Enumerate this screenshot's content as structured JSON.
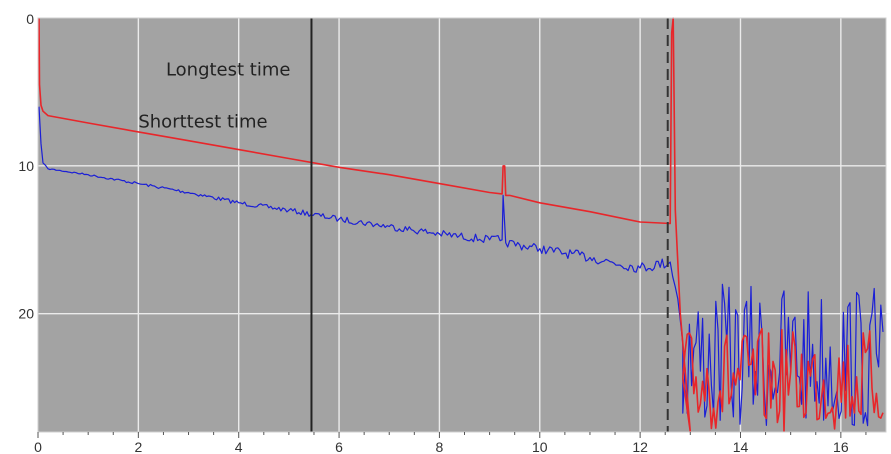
{
  "chart_data": {
    "type": "line",
    "xlim": [
      0,
      16.9
    ],
    "ylim": [
      0,
      28
    ],
    "y_inverted": true,
    "grid": true,
    "x_ticks": [
      0,
      2,
      4,
      6,
      8,
      10,
      12,
      14,
      16
    ],
    "x_tick_labels": [
      "0",
      "2",
      "4",
      "6",
      "8",
      "10",
      "12",
      "14",
      "16"
    ],
    "y_ticks": [
      0,
      10,
      20
    ],
    "y_tick_labels": [
      "0",
      "10",
      "20"
    ],
    "annotations": [
      {
        "text": "Longtest time",
        "x": 2.55,
        "y": 3.9
      },
      {
        "text": "Shorttest time",
        "x": 2.0,
        "y": 7.4
      }
    ],
    "marker_lines": [
      {
        "x": 5.45,
        "style": "solid",
        "color": "#222222"
      },
      {
        "x": 12.55,
        "style": "dashed",
        "color": "#333333"
      }
    ],
    "series": [
      {
        "color": "#e8262a",
        "x": [
          0.02,
          0.03,
          0.06,
          0.1,
          0.2,
          1.0,
          2.0,
          3.0,
          4.0,
          5.0,
          6.0,
          7.0,
          8.0,
          9.0,
          9.25,
          9.27,
          9.3,
          9.32,
          9.4,
          10.0,
          11.0,
          12.0,
          12.6,
          12.63,
          12.66,
          12.7,
          12.8,
          13.0
        ],
        "y": [
          0.0,
          4.5,
          5.9,
          6.3,
          6.6,
          7.1,
          7.7,
          8.3,
          8.9,
          9.5,
          10.1,
          10.6,
          11.2,
          11.8,
          11.9,
          10.0,
          10.0,
          12.0,
          12.0,
          12.5,
          13.1,
          13.8,
          13.9,
          1.0,
          0.0,
          13.0,
          20.0,
          28.0
        ],
        "noise_after_x": 12.85,
        "noise_range": [
          21,
          28
        ]
      },
      {
        "color": "#1b1fd6",
        "x": [
          0.02,
          0.06,
          0.1,
          0.2,
          1.0,
          2.0,
          3.0,
          4.0,
          5.0,
          6.0,
          7.0,
          8.0,
          9.0,
          9.25,
          9.27,
          9.32,
          10.0,
          11.0,
          12.0,
          12.6,
          12.75,
          12.85
        ],
        "y": [
          6.0,
          8.5,
          9.8,
          10.2,
          10.6,
          11.2,
          11.8,
          12.5,
          13.0,
          13.6,
          14.1,
          14.6,
          15.0,
          15.0,
          12.0,
          15.2,
          15.6,
          16.2,
          16.9,
          16.5,
          19.0,
          22.0
        ],
        "noise_after_x": 12.85,
        "noise_range": [
          18,
          28
        ]
      }
    ]
  }
}
